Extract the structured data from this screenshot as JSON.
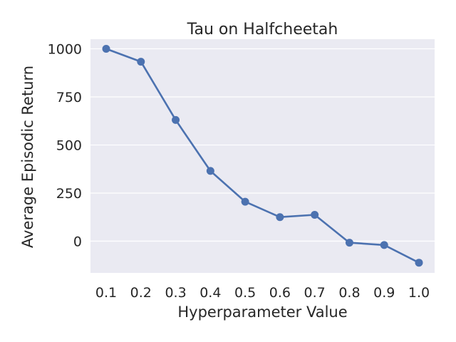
{
  "chart_data": {
    "type": "line",
    "title": "Tau on Halfcheetah",
    "xlabel": "Hyperparameter Value",
    "ylabel": "Average Episodic Return",
    "x": [
      "0.1",
      "0.2",
      "0.3",
      "0.4",
      "0.5",
      "0.6",
      "0.7",
      "0.8",
      "0.9",
      "1.0"
    ],
    "series": [
      {
        "values": [
          1000,
          933,
          630,
          365,
          205,
          125,
          137,
          -8,
          -20,
          -112
        ]
      }
    ],
    "yticks": [
      "0",
      "250",
      "500",
      "750",
      "1000"
    ],
    "ytick_values": [
      0,
      250,
      500,
      750,
      1000
    ],
    "ylim": [
      -165,
      1050
    ],
    "grid": true,
    "background_color": "#EAEAF2",
    "line_color": "#4C72B0"
  }
}
